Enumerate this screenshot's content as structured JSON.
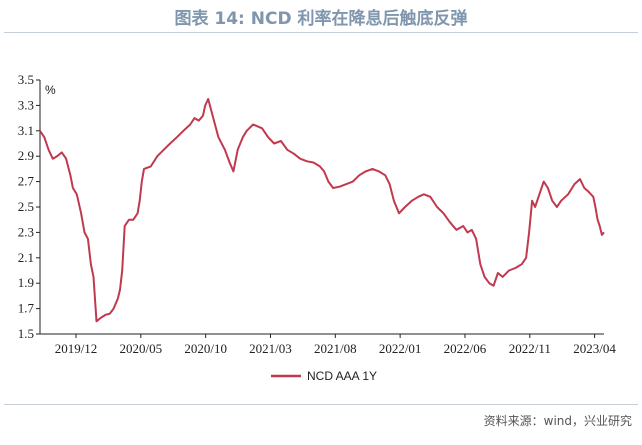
{
  "title": "图表 14: NCD 利率在降息后触底反弹",
  "source": "资料来源：wind，兴业研究",
  "chart_data": {
    "type": "line",
    "ylabel": "%",
    "ylim": [
      1.5,
      3.5
    ],
    "yticks": [
      "3.5",
      "3.3",
      "3.1",
      "2.9",
      "2.7",
      "2.5",
      "2.3",
      "2.1",
      "1.9",
      "1.7",
      "1.5"
    ],
    "xticks": [
      "2019/12",
      "2020/05",
      "2020/10",
      "2021/03",
      "2021/08",
      "2022/01",
      "2022/06",
      "2022/11",
      "2023/04"
    ],
    "xlim": [
      "2019-09-15",
      "2023-04-25"
    ],
    "grid": false,
    "legend": "bottom-center",
    "series": [
      {
        "name": "NCD AAA 1Y",
        "color": "#c0394f",
        "points": [
          [
            "2019-09-15",
            3.1
          ],
          [
            "2019-09-25",
            3.05
          ],
          [
            "2019-10-05",
            2.95
          ],
          [
            "2019-10-15",
            2.88
          ],
          [
            "2019-10-25",
            2.9
          ],
          [
            "2019-11-05",
            2.93
          ],
          [
            "2019-11-15",
            2.88
          ],
          [
            "2019-11-25",
            2.75
          ],
          [
            "2019-12-01",
            2.65
          ],
          [
            "2019-12-10",
            2.6
          ],
          [
            "2019-12-20",
            2.45
          ],
          [
            "2019-12-28",
            2.3
          ],
          [
            "2020-01-05",
            2.25
          ],
          [
            "2020-01-12",
            2.05
          ],
          [
            "2020-01-18",
            1.95
          ],
          [
            "2020-01-25",
            1.6
          ],
          [
            "2020-02-05",
            1.63
          ],
          [
            "2020-02-15",
            1.65
          ],
          [
            "2020-02-25",
            1.66
          ],
          [
            "2020-03-05",
            1.7
          ],
          [
            "2020-03-15",
            1.78
          ],
          [
            "2020-03-20",
            1.85
          ],
          [
            "2020-03-25",
            2.0
          ],
          [
            "2020-03-31",
            2.35
          ],
          [
            "2020-04-10",
            2.4
          ],
          [
            "2020-04-20",
            2.4
          ],
          [
            "2020-04-30",
            2.45
          ],
          [
            "2020-05-05",
            2.55
          ],
          [
            "2020-05-10",
            2.7
          ],
          [
            "2020-05-15",
            2.8
          ],
          [
            "2020-05-31",
            2.82
          ],
          [
            "2020-06-15",
            2.9
          ],
          [
            "2020-06-30",
            2.95
          ],
          [
            "2020-07-15",
            3.0
          ],
          [
            "2020-07-31",
            3.05
          ],
          [
            "2020-08-15",
            3.1
          ],
          [
            "2020-08-31",
            3.15
          ],
          [
            "2020-09-10",
            3.2
          ],
          [
            "2020-09-20",
            3.18
          ],
          [
            "2020-09-30",
            3.22
          ],
          [
            "2020-10-05",
            3.3
          ],
          [
            "2020-10-12",
            3.35
          ],
          [
            "2020-10-20",
            3.25
          ],
          [
            "2020-11-05",
            3.05
          ],
          [
            "2020-11-20",
            2.95
          ],
          [
            "2020-12-01",
            2.85
          ],
          [
            "2020-12-10",
            2.78
          ],
          [
            "2020-12-20",
            2.95
          ],
          [
            "2021-01-01",
            3.05
          ],
          [
            "2021-01-10",
            3.1
          ],
          [
            "2021-01-25",
            3.15
          ],
          [
            "2021-02-15",
            3.12
          ],
          [
            "2021-03-01",
            3.05
          ],
          [
            "2021-03-15",
            3.0
          ],
          [
            "2021-03-31",
            3.02
          ],
          [
            "2021-04-15",
            2.95
          ],
          [
            "2021-04-30",
            2.92
          ],
          [
            "2021-05-15",
            2.88
          ],
          [
            "2021-05-31",
            2.86
          ],
          [
            "2021-06-15",
            2.85
          ],
          [
            "2021-06-30",
            2.82
          ],
          [
            "2021-07-10",
            2.78
          ],
          [
            "2021-07-20",
            2.7
          ],
          [
            "2021-07-31",
            2.65
          ],
          [
            "2021-08-15",
            2.66
          ],
          [
            "2021-08-31",
            2.68
          ],
          [
            "2021-09-15",
            2.7
          ],
          [
            "2021-09-30",
            2.75
          ],
          [
            "2021-10-15",
            2.78
          ],
          [
            "2021-10-31",
            2.8
          ],
          [
            "2021-11-15",
            2.78
          ],
          [
            "2021-11-30",
            2.75
          ],
          [
            "2021-12-10",
            2.68
          ],
          [
            "2021-12-20",
            2.55
          ],
          [
            "2022-01-01",
            2.45
          ],
          [
            "2022-01-15",
            2.5
          ],
          [
            "2022-01-31",
            2.55
          ],
          [
            "2022-02-15",
            2.58
          ],
          [
            "2022-02-28",
            2.6
          ],
          [
            "2022-03-15",
            2.58
          ],
          [
            "2022-03-31",
            2.5
          ],
          [
            "2022-04-15",
            2.45
          ],
          [
            "2022-04-30",
            2.38
          ],
          [
            "2022-05-15",
            2.32
          ],
          [
            "2022-05-31",
            2.35
          ],
          [
            "2022-06-10",
            2.3
          ],
          [
            "2022-06-20",
            2.32
          ],
          [
            "2022-06-30",
            2.25
          ],
          [
            "2022-07-10",
            2.05
          ],
          [
            "2022-07-20",
            1.95
          ],
          [
            "2022-07-31",
            1.9
          ],
          [
            "2022-08-10",
            1.88
          ],
          [
            "2022-08-20",
            1.98
          ],
          [
            "2022-08-31",
            1.95
          ],
          [
            "2022-09-15",
            2.0
          ],
          [
            "2022-09-30",
            2.02
          ],
          [
            "2022-10-15",
            2.05
          ],
          [
            "2022-10-25",
            2.1
          ],
          [
            "2022-11-01",
            2.3
          ],
          [
            "2022-11-08",
            2.55
          ],
          [
            "2022-11-15",
            2.5
          ],
          [
            "2022-11-25",
            2.6
          ],
          [
            "2022-12-05",
            2.7
          ],
          [
            "2022-12-15",
            2.65
          ],
          [
            "2022-12-25",
            2.55
          ],
          [
            "2023-01-05",
            2.5
          ],
          [
            "2023-01-15",
            2.55
          ],
          [
            "2023-01-31",
            2.6
          ],
          [
            "2023-02-15",
            2.68
          ],
          [
            "2023-02-28",
            2.72
          ],
          [
            "2023-03-10",
            2.65
          ],
          [
            "2023-03-20",
            2.62
          ],
          [
            "2023-03-31",
            2.58
          ],
          [
            "2023-04-05",
            2.5
          ],
          [
            "2023-04-10",
            2.4
          ],
          [
            "2023-04-15",
            2.35
          ],
          [
            "2023-04-20",
            2.28
          ],
          [
            "2023-04-25",
            2.3
          ]
        ]
      }
    ]
  }
}
